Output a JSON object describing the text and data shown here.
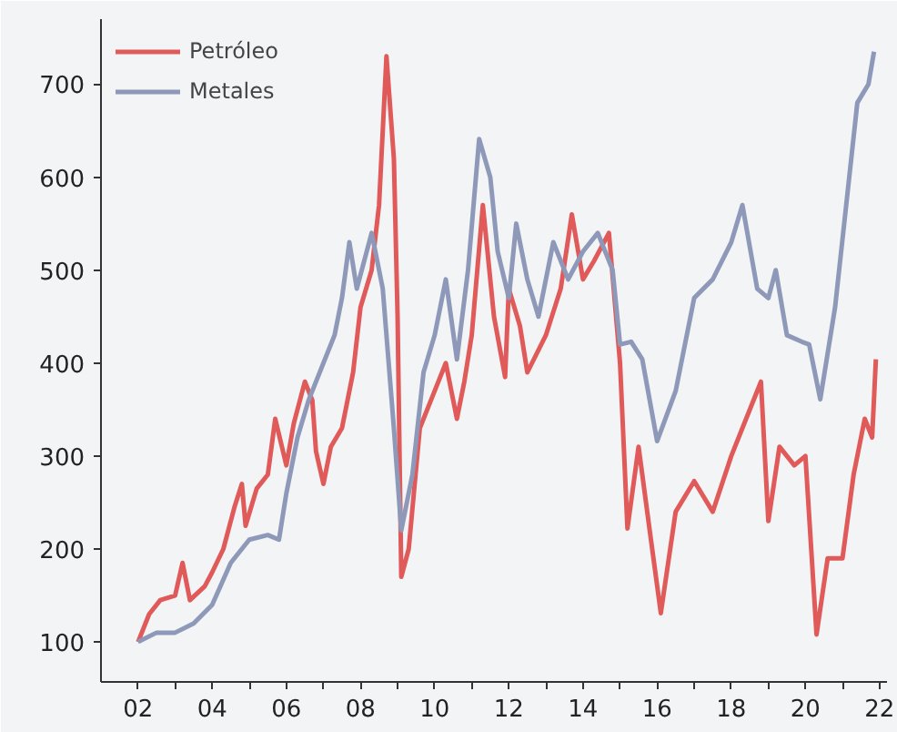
{
  "chart_data": {
    "type": "line",
    "xlim": [
      2001.0,
      2022.2
    ],
    "ylim": [
      57,
      770
    ],
    "xticks": [
      {
        "value": 2002,
        "label": "02"
      },
      {
        "value": 2003,
        "label": null
      },
      {
        "value": 2004,
        "label": "04"
      },
      {
        "value": 2005,
        "label": null
      },
      {
        "value": 2006,
        "label": "06"
      },
      {
        "value": 2007,
        "label": null
      },
      {
        "value": 2008,
        "label": "08"
      },
      {
        "value": 2009,
        "label": null
      },
      {
        "value": 2010,
        "label": "10"
      },
      {
        "value": 2011,
        "label": null
      },
      {
        "value": 2012,
        "label": "12"
      },
      {
        "value": 2013,
        "label": null
      },
      {
        "value": 2014,
        "label": "14"
      },
      {
        "value": 2015,
        "label": null
      },
      {
        "value": 2016,
        "label": "16"
      },
      {
        "value": 2017,
        "label": null
      },
      {
        "value": 2018,
        "label": "18"
      },
      {
        "value": 2019,
        "label": null
      },
      {
        "value": 2020,
        "label": "20"
      },
      {
        "value": 2021,
        "label": null
      },
      {
        "value": 2022,
        "label": "22"
      }
    ],
    "yticks": [
      100,
      200,
      300,
      400,
      500,
      600,
      700
    ],
    "grid": false,
    "legend": "top left",
    "series": [
      {
        "name": "Petróleo",
        "color": "#e05a5a",
        "x": [
          2002.0,
          2002.3,
          2002.6,
          2003.0,
          2003.2,
          2003.4,
          2003.8,
          2004.0,
          2004.3,
          2004.6,
          2004.8,
          2004.9,
          2005.2,
          2005.5,
          2005.7,
          2006.0,
          2006.2,
          2006.5,
          2006.7,
          2006.8,
          2007.0,
          2007.2,
          2007.5,
          2007.8,
          2008.0,
          2008.3,
          2008.5,
          2008.7,
          2008.9,
          2009.0,
          2009.1,
          2009.3,
          2009.6,
          2010.0,
          2010.3,
          2010.6,
          2010.8,
          2011.0,
          2011.3,
          2011.6,
          2011.9,
          2012.0,
          2012.3,
          2012.5,
          2013.0,
          2013.4,
          2013.7,
          2014.0,
          2014.3,
          2014.7,
          2015.0,
          2015.2,
          2015.5,
          2015.8,
          2016.1,
          2016.5,
          2017.0,
          2017.5,
          2018.0,
          2018.3,
          2018.8,
          2019.0,
          2019.3,
          2019.7,
          2020.0,
          2020.3,
          2020.6,
          2021.0,
          2021.3,
          2021.6,
          2021.8,
          2021.9
        ],
        "values": [
          100,
          130,
          145,
          150,
          185,
          145,
          160,
          175,
          200,
          245,
          270,
          225,
          265,
          280,
          340,
          290,
          335,
          380,
          360,
          305,
          270,
          310,
          330,
          390,
          460,
          500,
          570,
          730,
          620,
          450,
          170,
          200,
          330,
          370,
          400,
          340,
          380,
          430,
          570,
          450,
          385,
          480,
          440,
          390,
          430,
          480,
          560,
          490,
          510,
          540,
          400,
          222,
          310,
          220,
          131,
          240,
          273,
          240,
          300,
          330,
          380,
          230,
          310,
          290,
          300,
          108,
          190,
          190,
          280,
          340,
          320,
          404
        ]
      },
      {
        "name": "Metales",
        "color": "#8e98b8",
        "x": [
          2002.0,
          2002.5,
          2003.0,
          2003.5,
          2004.0,
          2004.5,
          2005.0,
          2005.5,
          2005.8,
          2006.0,
          2006.3,
          2006.6,
          2007.0,
          2007.3,
          2007.5,
          2007.7,
          2007.9,
          2008.3,
          2008.6,
          2008.9,
          2009.1,
          2009.4,
          2009.7,
          2010.0,
          2010.3,
          2010.6,
          2010.9,
          2011.2,
          2011.5,
          2011.7,
          2012.0,
          2012.2,
          2012.5,
          2012.8,
          2013.2,
          2013.6,
          2014.0,
          2014.4,
          2014.8,
          2015.0,
          2015.3,
          2015.6,
          2016.0,
          2016.5,
          2017.0,
          2017.5,
          2018.0,
          2018.3,
          2018.7,
          2019.0,
          2019.2,
          2019.5,
          2019.9,
          2020.1,
          2020.4,
          2020.8,
          2021.1,
          2021.4,
          2021.7,
          2021.85
        ],
        "values": [
          100,
          110,
          110,
          120,
          140,
          185,
          210,
          215,
          210,
          260,
          320,
          360,
          400,
          430,
          470,
          530,
          480,
          540,
          480,
          330,
          220,
          280,
          390,
          430,
          490,
          404,
          500,
          641,
          600,
          520,
          470,
          550,
          490,
          450,
          530,
          490,
          520,
          540,
          500,
          420,
          423,
          404,
          316,
          370,
          470,
          490,
          530,
          570,
          480,
          470,
          500,
          430,
          423,
          420,
          361,
          460,
          570,
          680,
          700,
          735
        ]
      }
    ]
  }
}
